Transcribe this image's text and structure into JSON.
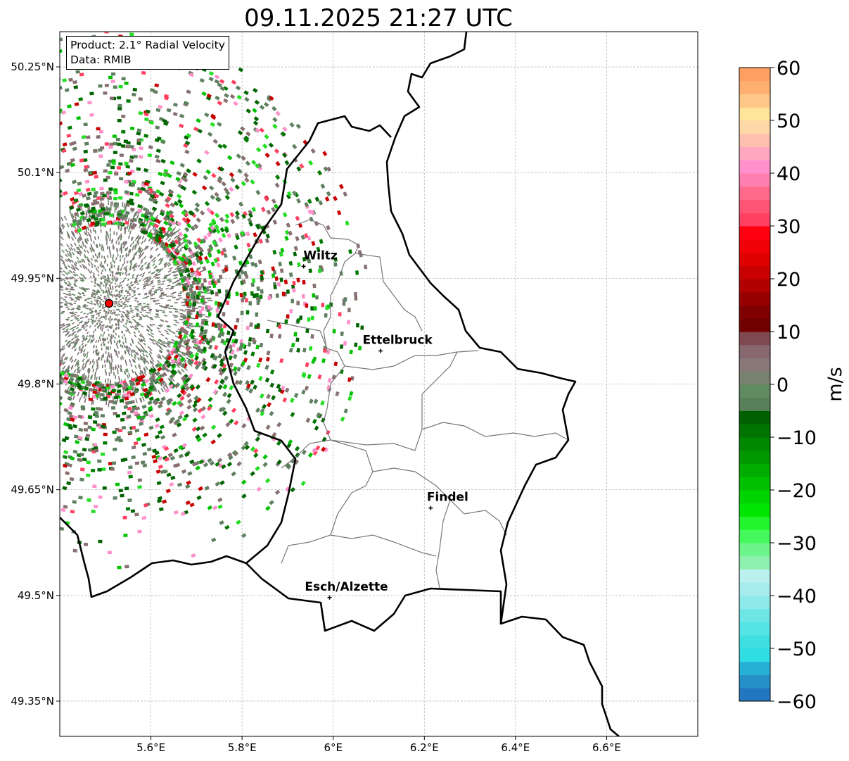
{
  "title": "09.11.2025 21:27 UTC",
  "info_box": {
    "product": "Product: 2.1° Radial Velocity",
    "data": "Data: RMIB"
  },
  "chart_data": {
    "type": "heatmap",
    "subtype": "radar-map",
    "title": "09.11.2025 21:27 UTC",
    "lon_range": [
      5.4,
      6.8
    ],
    "lat_range": [
      49.3,
      50.3
    ],
    "xticks": [
      {
        "v": 5.6,
        "label": "5.6°E"
      },
      {
        "v": 5.8,
        "label": "5.8°E"
      },
      {
        "v": 6.0,
        "label": "6°E"
      },
      {
        "v": 6.2,
        "label": "6.2°E"
      },
      {
        "v": 6.4,
        "label": "6.4°E"
      },
      {
        "v": 6.6,
        "label": "6.6°E"
      }
    ],
    "yticks": [
      {
        "v": 50.25,
        "label": "50.25°N"
      },
      {
        "v": 50.1,
        "label": "50.1°N"
      },
      {
        "v": 49.95,
        "label": "49.95°N"
      },
      {
        "v": 49.8,
        "label": "49.8°N"
      },
      {
        "v": 49.65,
        "label": "49.65°N"
      },
      {
        "v": 49.5,
        "label": "49.5°N"
      },
      {
        "v": 49.35,
        "label": "49.35°N"
      }
    ],
    "grid": true,
    "radar_site": {
      "lon": 5.509,
      "lat": 49.914
    },
    "cities": [
      {
        "name": "Wiltz",
        "lon": 5.935,
        "lat": 49.967
      },
      {
        "name": "Ettelbruck",
        "lon": 6.104,
        "lat": 49.847
      },
      {
        "name": "Findel",
        "lon": 6.214,
        "lat": 49.624
      },
      {
        "name": "Esch/Alzette",
        "lon": 5.992,
        "lat": 49.497
      }
    ],
    "colorbar": {
      "label": "m/s",
      "range": [
        -60,
        60
      ],
      "ticks": [
        {
          "v": 60,
          "label": "60"
        },
        {
          "v": 50,
          "label": "50"
        },
        {
          "v": 40,
          "label": "40"
        },
        {
          "v": 30,
          "label": "30"
        },
        {
          "v": 20,
          "label": "20"
        },
        {
          "v": 10,
          "label": "10"
        },
        {
          "v": 0,
          "label": "0"
        },
        {
          "v": -10,
          "label": "−10"
        },
        {
          "v": -20,
          "label": "−20"
        },
        {
          "v": -30,
          "label": "−30"
        },
        {
          "v": -40,
          "label": "−40"
        },
        {
          "v": -50,
          "label": "−50"
        },
        {
          "v": -60,
          "label": "−60"
        }
      ],
      "step": 2.5,
      "colors": [
        "#2277c0",
        "#2590c8",
        "#26b0d6",
        "#30dde3",
        "#3ddfe0",
        "#55e3e3",
        "#6ee6e6",
        "#8ee9ea",
        "#a6ecee",
        "#baf0ee",
        "#90f0b0",
        "#6cf58a",
        "#45f85c",
        "#22f52e",
        "#00e600",
        "#00d400",
        "#00c000",
        "#00ad00",
        "#009800",
        "#008700",
        "#007400",
        "#006000",
        "#588058",
        "#608a60",
        "#788070",
        "#887878",
        "#886870",
        "#804850",
        "#700000",
        "#800000",
        "#980000",
        "#b00000",
        "#c80000",
        "#e00000",
        "#f00008",
        "#ff0010",
        "#ff4060",
        "#ff5575",
        "#ff6a8c",
        "#ff80b0",
        "#ff90cc",
        "#ffa8c0",
        "#ffc0b0",
        "#ffd8a8",
        "#ffe49a",
        "#ffc888",
        "#ffb070",
        "#ffa060"
      ]
    }
  }
}
